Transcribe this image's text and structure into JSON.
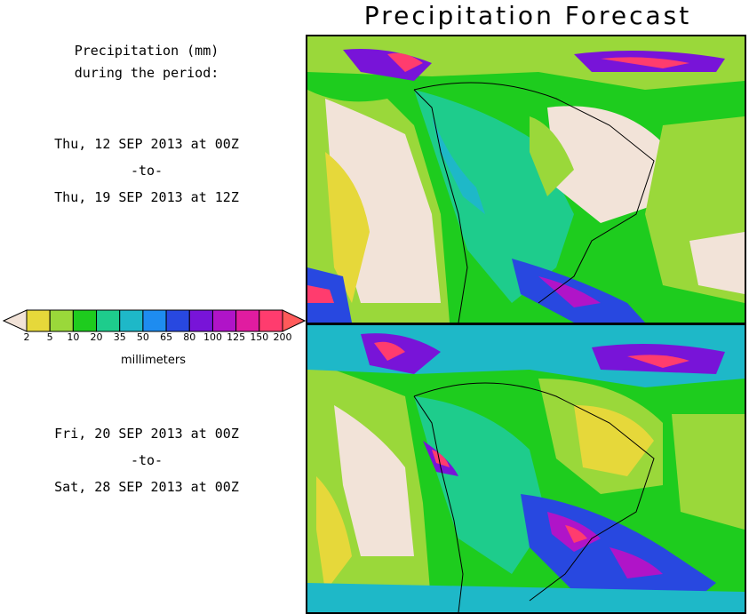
{
  "title": "Precipitation Forecast",
  "legend_heading": [
    "Precipitation (mm)",
    "during the period:"
  ],
  "period1": {
    "start": "Thu, 12 SEP 2013 at 00Z",
    "sep": "-to-",
    "end": "Thu, 19 SEP 2013 at 12Z"
  },
  "period2": {
    "start": "Fri, 20 SEP 2013 at 00Z",
    "sep": "-to-",
    "end": "Sat, 28 SEP 2013 at 00Z"
  },
  "colorbar": {
    "unit": "millimeters",
    "ticks": [
      "2",
      "5",
      "10",
      "20",
      "35",
      "50",
      "65",
      "80",
      "100",
      "125",
      "150",
      "200"
    ],
    "colors": [
      "#f2e3d8",
      "#e6d83a",
      "#9ad83a",
      "#1ecc1e",
      "#1ecc8c",
      "#1eb8c8",
      "#1e8cf0",
      "#2848e0",
      "#7814d8",
      "#b014c8",
      "#e01ca0",
      "#ff3c6e",
      "#ff5a5a"
    ]
  }
}
